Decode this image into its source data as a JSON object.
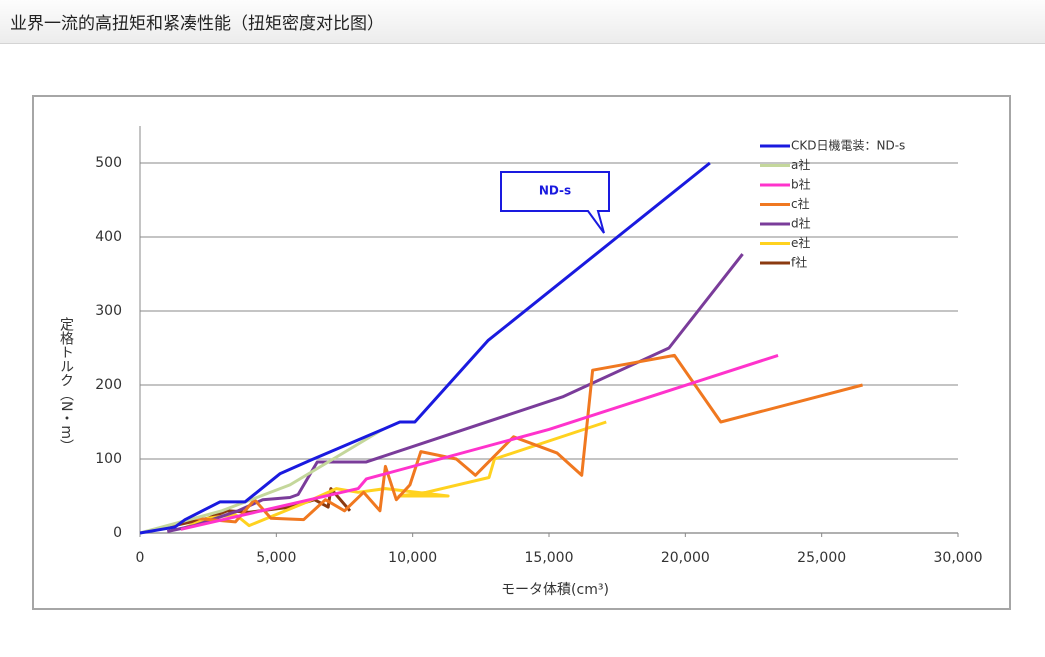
{
  "header": {
    "title": "业界一流的高扭矩和紧凑性能（扭矩密度对比图）"
  },
  "chart_data": {
    "type": "line",
    "x_label": "モータ体積(cm³)",
    "y_label": "定格トルク（N・m）",
    "annotation": "ND-s",
    "xlim": [
      0,
      30000
    ],
    "ylim": [
      0,
      550
    ],
    "xticks": [
      0,
      {
        "value": 5000,
        "label": "5,000"
      },
      {
        "value": 10000,
        "label": "10,000"
      },
      {
        "value": 15000,
        "label": "15,000"
      },
      {
        "value": 20000,
        "label": "20,000"
      },
      {
        "value": 25000,
        "label": "25,000"
      },
      {
        "value": 30000,
        "label": "30,000"
      }
    ],
    "yticks": [
      0,
      100,
      200,
      300,
      400,
      500
    ],
    "grid": true,
    "legend": "top-right",
    "series": [
      {
        "name": "CKD日機電装：ND-s",
        "color": "#1a1adf",
        "x": [
          0,
          1280,
          1650,
          2930,
          3850,
          5130,
          6230,
          8910,
          9530,
          10080,
          12760,
          20900
        ],
        "values": [
          0,
          8,
          18,
          42,
          42,
          80,
          98,
          140,
          150,
          150,
          260,
          500
        ]
      },
      {
        "name": "a社",
        "color": "#c4d79b",
        "x": [
          0,
          3000,
          5500,
          8900
        ],
        "values": [
          0,
          30,
          65,
          140
        ]
      },
      {
        "name": "b社",
        "color": "#ff33cc",
        "x": [
          1500,
          8000,
          8300,
          15000,
          23400
        ],
        "values": [
          5,
          60,
          73,
          140,
          240
        ]
      },
      {
        "name": "c社",
        "color": "#f07820",
        "x": [
          2000,
          3500,
          4200,
          4800,
          6000,
          6800,
          7500,
          8200,
          8800,
          9000,
          9400,
          9900,
          10300,
          11600,
          12300,
          13700,
          15300,
          16200,
          16600,
          19600,
          21300,
          26500
        ],
        "values": [
          20,
          15,
          45,
          20,
          18,
          45,
          30,
          55,
          30,
          90,
          45,
          65,
          110,
          100,
          78,
          130,
          108,
          78,
          220,
          240,
          150,
          200
        ]
      },
      {
        "name": "d社",
        "color": "#7a3c9a",
        "x": [
          1000,
          2000,
          3600,
          4500,
          5500,
          5800,
          6500,
          8300,
          15500,
          19400,
          22100
        ],
        "values": [
          2,
          10,
          30,
          45,
          48,
          52,
          96,
          96,
          184,
          250,
          377
        ]
      },
      {
        "name": "e社",
        "color": "#ffd21f",
        "x": [
          1500,
          2500,
          3500,
          4000,
          5000,
          6000,
          7200,
          8000,
          9000,
          11300,
          9500,
          10500,
          12800,
          13000,
          17100
        ],
        "values": [
          5,
          20,
          25,
          10,
          25,
          40,
          60,
          55,
          60,
          50,
          50,
          55,
          75,
          100,
          150
        ]
      },
      {
        "name": "f社",
        "color": "#8b3a10",
        "x": [
          600,
          1500,
          2500,
          3200,
          4000,
          5500,
          6400,
          6900,
          7000,
          7700
        ],
        "values": [
          5,
          12,
          20,
          30,
          28,
          35,
          45,
          35,
          60,
          30
        ]
      }
    ]
  }
}
